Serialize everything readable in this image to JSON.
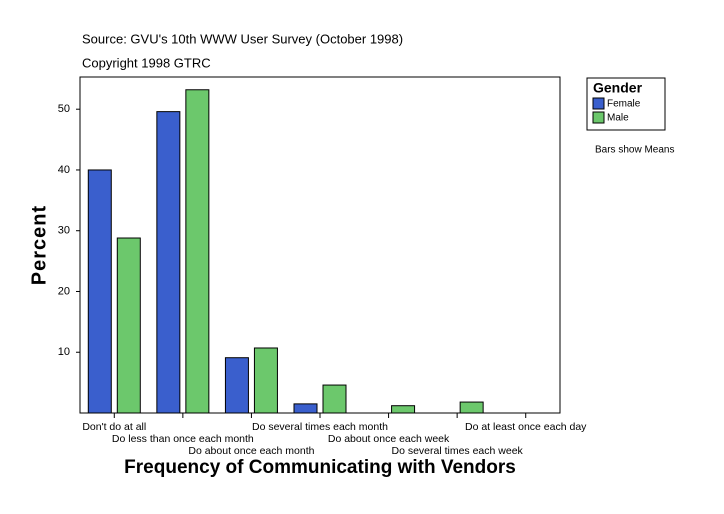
{
  "chart_data": {
    "type": "bar",
    "source": "Source: GVU's 10th WWW User Survey (October 1998)",
    "copyright": "Copyright 1998 GTRC",
    "x_label": "Frequency of Communicating with Vendors",
    "y_label": "Percent",
    "legend_title": "Gender",
    "note": "Bars show Means",
    "categories": [
      "Don't do at all",
      "Do less than once each month",
      "Do about once each month",
      "Do several times each month",
      "Do about once each week",
      "Do several times each week",
      "Do at least once each day"
    ],
    "series": [
      {
        "name": "Female",
        "color": "#3a5fcd",
        "values": [
          40.0,
          49.6,
          9.1,
          1.5,
          0,
          0,
          0
        ]
      },
      {
        "name": "Male",
        "color": "#6cc86c",
        "values": [
          28.8,
          53.2,
          10.7,
          4.6,
          1.2,
          1.8,
          0
        ]
      }
    ],
    "ylim": [
      0,
      55.3
    ],
    "yticks": [
      10,
      20,
      30,
      40,
      50
    ],
    "grid": false,
    "legend": "right"
  }
}
